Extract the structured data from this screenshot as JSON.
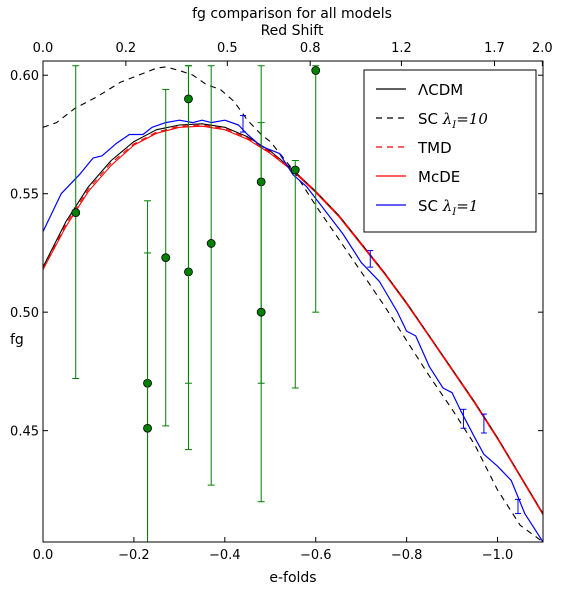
{
  "chart_data": {
    "type": "line",
    "title": "fg comparison for all models",
    "top_axis": {
      "label": "Red Shift",
      "ticks": [
        {
          "efolds": 0.0,
          "label": "0.0"
        },
        {
          "efolds": -0.1823,
          "label": "0.2"
        },
        {
          "efolds": -0.4055,
          "label": "0.5"
        },
        {
          "efolds": -0.5878,
          "label": "0.8"
        },
        {
          "efolds": -0.7885,
          "label": "1.2"
        },
        {
          "efolds": -0.9933,
          "label": "1.7"
        },
        {
          "efolds": -1.0986,
          "label": "2.0"
        }
      ]
    },
    "xlabel": "e-folds",
    "ylabel": "fg",
    "xlim": [
      0.0,
      -1.1
    ],
    "ylim": [
      0.403,
      0.606
    ],
    "x_ticks": [
      {
        "value": 0.0,
        "label": "0.0"
      },
      {
        "value": -0.2,
        "label": "−0.2"
      },
      {
        "value": -0.4,
        "label": "−0.4"
      },
      {
        "value": -0.6,
        "label": "−0.6"
      },
      {
        "value": -0.8,
        "label": "−0.8"
      },
      {
        "value": -1.0,
        "label": "−1.0"
      }
    ],
    "y_ticks": [
      {
        "value": 0.45,
        "label": "0.45"
      },
      {
        "value": 0.5,
        "label": "0.50"
      },
      {
        "value": 0.55,
        "label": "0.55"
      },
      {
        "value": 0.6,
        "label": "0.60"
      }
    ],
    "legend_position": "top-right",
    "series": [
      {
        "name": "ΛCDM",
        "color": "#000000",
        "dash": "solid",
        "x": [
          0,
          -0.05,
          -0.1,
          -0.15,
          -0.2,
          -0.25,
          -0.3,
          -0.35,
          -0.4,
          -0.45,
          -0.5,
          -0.55,
          -0.6,
          -0.65,
          -0.7,
          -0.75,
          -0.8,
          -0.85,
          -0.9,
          -0.95,
          -1.0,
          -1.05,
          -1.1
        ],
        "y": [
          0.519,
          0.538,
          0.553,
          0.564,
          0.572,
          0.577,
          0.579,
          0.5795,
          0.578,
          0.574,
          0.568,
          0.56,
          0.551,
          0.541,
          0.529,
          0.517,
          0.504,
          0.49,
          0.476,
          0.462,
          0.447,
          0.431,
          0.415
        ]
      },
      {
        "name": "SC λ_I =10",
        "color": "#000000",
        "dash": "dashed",
        "x": [
          0,
          -0.03,
          -0.07,
          -0.12,
          -0.17,
          -0.21,
          -0.25,
          -0.27,
          -0.3,
          -0.33,
          -0.36,
          -0.39,
          -0.42,
          -0.45,
          -0.48,
          -0.5,
          -0.55,
          -0.6,
          -0.65,
          -0.7,
          -0.75,
          -0.8,
          -0.85,
          -0.9,
          -0.95,
          -1.0,
          -1.05,
          -1.1
        ],
        "y": [
          0.578,
          0.58,
          0.586,
          0.591,
          0.597,
          0.6,
          0.603,
          0.6035,
          0.602,
          0.6,
          0.596,
          0.594,
          0.589,
          0.581,
          0.575,
          0.572,
          0.56,
          0.545,
          0.531,
          0.517,
          0.503,
          0.488,
          0.473,
          0.459,
          0.444,
          0.425,
          0.41,
          0.403
        ]
      },
      {
        "name": "TMD",
        "color": "#ff0000",
        "dash": "dashed",
        "x": [
          0,
          -0.05,
          -0.1,
          -0.15,
          -0.2,
          -0.25,
          -0.3,
          -0.35,
          -0.4,
          -0.45,
          -0.5,
          -0.55,
          -0.6,
          -0.65,
          -0.7,
          -0.75,
          -0.8,
          -0.85,
          -0.9,
          -0.95,
          -1.0,
          -1.05,
          -1.1
        ],
        "y": [
          0.518,
          0.537,
          0.552,
          0.563,
          0.571,
          0.576,
          0.5785,
          0.579,
          0.5775,
          0.5735,
          0.5675,
          0.56,
          0.551,
          0.541,
          0.529,
          0.517,
          0.504,
          0.49,
          0.476,
          0.462,
          0.447,
          0.431,
          0.415
        ]
      },
      {
        "name": "McDE",
        "color": "#ff0000",
        "dash": "solid",
        "x": [
          0,
          -0.05,
          -0.1,
          -0.15,
          -0.2,
          -0.25,
          -0.3,
          -0.35,
          -0.4,
          -0.45,
          -0.5,
          -0.55,
          -0.6,
          -0.65,
          -0.7,
          -0.75,
          -0.8,
          -0.85,
          -0.9,
          -0.95,
          -1.0,
          -1.05,
          -1.1
        ],
        "y": [
          0.518,
          0.536,
          0.551,
          0.562,
          0.5705,
          0.5755,
          0.578,
          0.5785,
          0.577,
          0.573,
          0.567,
          0.5595,
          0.5505,
          0.5405,
          0.5285,
          0.5165,
          0.5035,
          0.4895,
          0.4755,
          0.4615,
          0.4465,
          0.4305,
          0.4145
        ]
      },
      {
        "name": "SC λ_I =1",
        "color": "#0000ff",
        "dash": "solid",
        "x": [
          0,
          -0.04,
          -0.08,
          -0.11,
          -0.13,
          -0.16,
          -0.19,
          -0.22,
          -0.24,
          -0.27,
          -0.3,
          -0.33,
          -0.35,
          -0.37,
          -0.4,
          -0.43,
          -0.45,
          -0.48,
          -0.52,
          -0.55,
          -0.58,
          -0.62,
          -0.66,
          -0.7,
          -0.74,
          -0.78,
          -0.8,
          -0.82,
          -0.85,
          -0.88,
          -0.9,
          -0.92,
          -0.95,
          -0.97,
          -1.0,
          -1.03,
          -1.06,
          -1.1
        ],
        "y": [
          0.534,
          0.55,
          0.558,
          0.565,
          0.566,
          0.571,
          0.575,
          0.575,
          0.578,
          0.58,
          0.581,
          0.58,
          0.581,
          0.58,
          0.581,
          0.579,
          0.575,
          0.57,
          0.567,
          0.558,
          0.553,
          0.543,
          0.533,
          0.521,
          0.513,
          0.5,
          0.492,
          0.49,
          0.477,
          0.468,
          0.466,
          0.458,
          0.447,
          0.44,
          0.435,
          0.429,
          0.415,
          0.403
        ]
      }
    ],
    "data_points": {
      "name": "observations",
      "color": "#008000",
      "points": [
        {
          "x": -0.072,
          "y": 0.542,
          "low": 0.472,
          "high": 0.604
        },
        {
          "x": -0.23,
          "y": 0.47,
          "low": 0.403,
          "high": 0.525
        },
        {
          "x": -0.23,
          "y": 0.451,
          "low": 0.403,
          "high": 0.547
        },
        {
          "x": -0.27,
          "y": 0.523,
          "low": 0.452,
          "high": 0.594
        },
        {
          "x": -0.32,
          "y": 0.517,
          "low": 0.442,
          "high": 0.604
        },
        {
          "x": -0.32,
          "y": 0.59,
          "low": 0.47,
          "high": 0.604
        },
        {
          "x": -0.37,
          "y": 0.529,
          "low": 0.427,
          "high": 0.604
        },
        {
          "x": -0.48,
          "y": 0.555,
          "low": 0.47,
          "high": 0.58
        },
        {
          "x": -0.48,
          "y": 0.5,
          "low": 0.42,
          "high": 0.604
        },
        {
          "x": -0.555,
          "y": 0.56,
          "low": 0.468,
          "high": 0.564
        },
        {
          "x": -0.6,
          "y": 0.602,
          "low": 0.5,
          "high": 0.604
        }
      ]
    },
    "blue_errorbars": [
      {
        "x": -0.44,
        "y": 0.5795,
        "low": 0.576,
        "high": 0.583
      },
      {
        "x": -0.72,
        "y": 0.5225,
        "low": 0.519,
        "high": 0.526
      },
      {
        "x": -0.925,
        "y": 0.455,
        "low": 0.451,
        "high": 0.459
      },
      {
        "x": -0.97,
        "y": 0.453,
        "low": 0.449,
        "high": 0.457
      },
      {
        "x": -1.045,
        "y": 0.418,
        "low": 0.415,
        "high": 0.421
      }
    ]
  }
}
